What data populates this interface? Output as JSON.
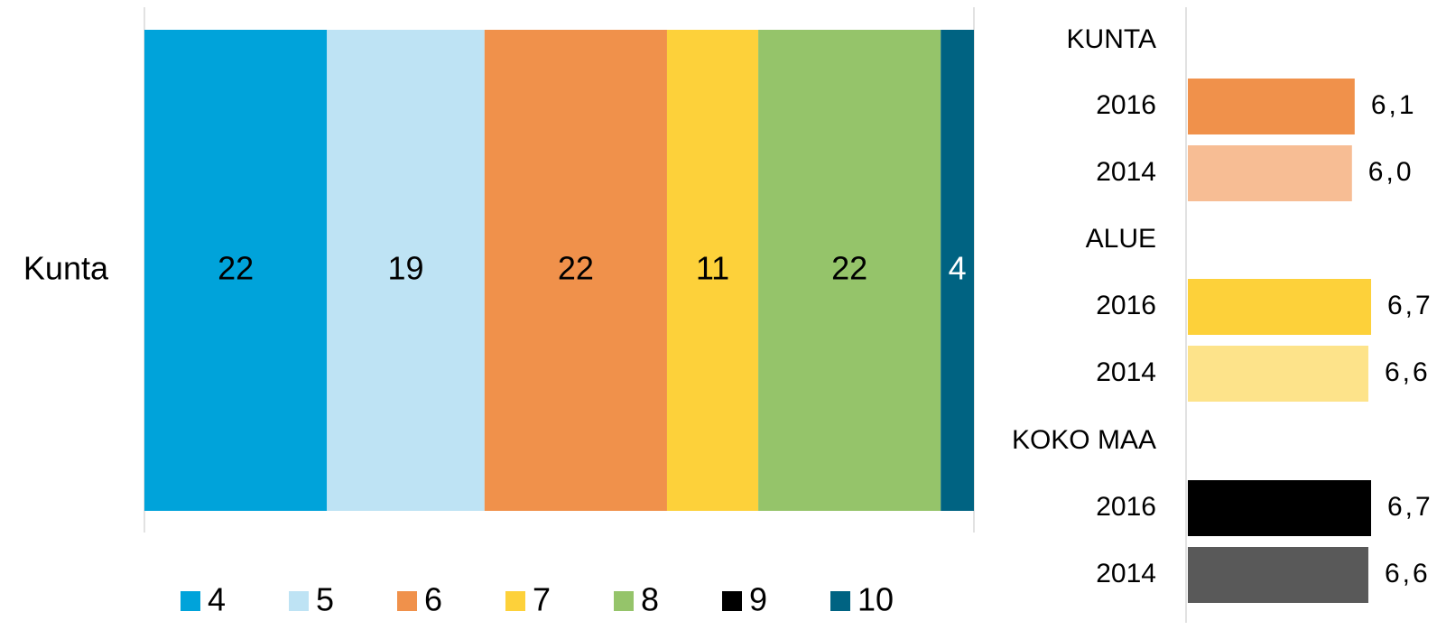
{
  "chart_data": [
    {
      "type": "bar",
      "orientation": "horizontal",
      "stacked": true,
      "categories": [
        "Kunta"
      ],
      "series": [
        {
          "name": "4",
          "values": [
            22
          ],
          "color": "#00A3DA"
        },
        {
          "name": "5",
          "values": [
            19
          ],
          "color": "#BEE3F4"
        },
        {
          "name": "6",
          "values": [
            22
          ],
          "color": "#F0914B"
        },
        {
          "name": "7",
          "values": [
            11
          ],
          "color": "#FDD13A"
        },
        {
          "name": "8",
          "values": [
            22
          ],
          "color": "#95C46A"
        },
        {
          "name": "9",
          "values": [
            0
          ],
          "color": "#000000"
        },
        {
          "name": "10",
          "values": [
            4
          ],
          "color": "#006382"
        }
      ],
      "data_labels": [
        "22",
        "19",
        "22",
        "11",
        "22",
        "",
        "4"
      ],
      "legend_position": "bottom",
      "grid": false
    },
    {
      "type": "bar",
      "orientation": "horizontal",
      "groups": [
        {
          "label": "KUNTA",
          "bars": [
            {
              "label": "2016",
              "value": 6.1,
              "value_label": "6,1",
              "color": "#F0914B"
            },
            {
              "label": "2014",
              "value": 6.0,
              "value_label": "6,0",
              "color": "#F7BD94"
            }
          ]
        },
        {
          "label": "ALUE",
          "bars": [
            {
              "label": "2016",
              "value": 6.7,
              "value_label": "6,7",
              "color": "#FDD13A"
            },
            {
              "label": "2014",
              "value": 6.6,
              "value_label": "6,6",
              "color": "#FDE38A"
            }
          ]
        },
        {
          "label": "KOKO MAA",
          "bars": [
            {
              "label": "2016",
              "value": 6.7,
              "value_label": "6,7",
              "color": "#000000"
            },
            {
              "label": "2014",
              "value": 6.6,
              "value_label": "6,6",
              "color": "#595959"
            }
          ]
        }
      ],
      "grid": false
    }
  ]
}
